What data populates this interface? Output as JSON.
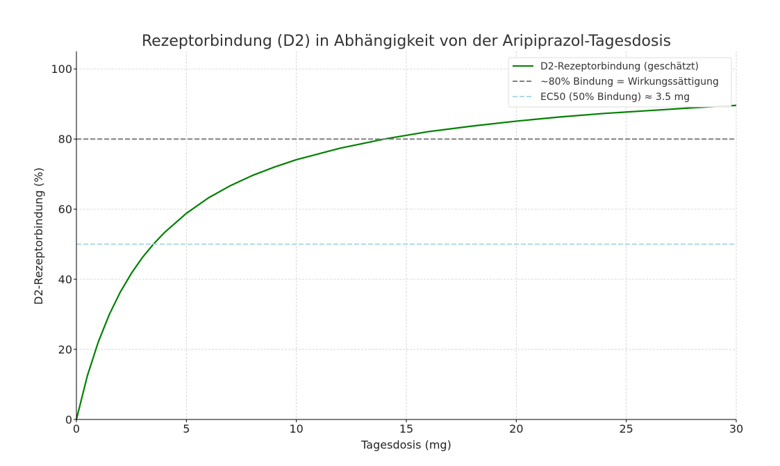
{
  "chart_data": {
    "type": "line",
    "title": "Rezeptorbindung (D2) in Abhängigkeit von der Aripiprazol-Tagesdosis",
    "xlabel": "Tagesdosis (mg)",
    "ylabel": "D2-Rezeptorbindung (%)",
    "xlim": [
      0,
      30
    ],
    "ylim": [
      0,
      105
    ],
    "x_ticks": [
      0,
      5,
      10,
      15,
      20,
      25,
      30
    ],
    "y_ticks": [
      0,
      20,
      40,
      60,
      80,
      100
    ],
    "grid": true,
    "legend_position": "top-right",
    "series": [
      {
        "name": "D2-Rezeptorbindung (geschätzt)",
        "style": "solid",
        "color": "#008000",
        "x": [
          0,
          0.5,
          1,
          1.5,
          2,
          2.5,
          3,
          3.5,
          4,
          5,
          6,
          7,
          8,
          9,
          10,
          12,
          14,
          16,
          18,
          20,
          22,
          24,
          26,
          28,
          30
        ],
        "y": [
          0,
          12.5,
          22.2,
          30.0,
          36.4,
          41.7,
          46.2,
          50.0,
          53.3,
          58.8,
          63.2,
          66.7,
          69.6,
          72.0,
          74.1,
          77.4,
          80.0,
          82.1,
          83.7,
          85.1,
          86.3,
          87.3,
          88.1,
          88.9,
          89.6
        ]
      },
      {
        "name": "~80% Bindung = Wirkungssättigung",
        "style": "dashed",
        "color": "#808080",
        "x": [
          0,
          30
        ],
        "y": [
          80,
          80
        ]
      },
      {
        "name": "EC50 (50% Bindung) ≈ 3.5 mg",
        "style": "dashed",
        "color": "#add8e6",
        "x": [
          0,
          30
        ],
        "y": [
          50,
          50
        ]
      }
    ]
  }
}
